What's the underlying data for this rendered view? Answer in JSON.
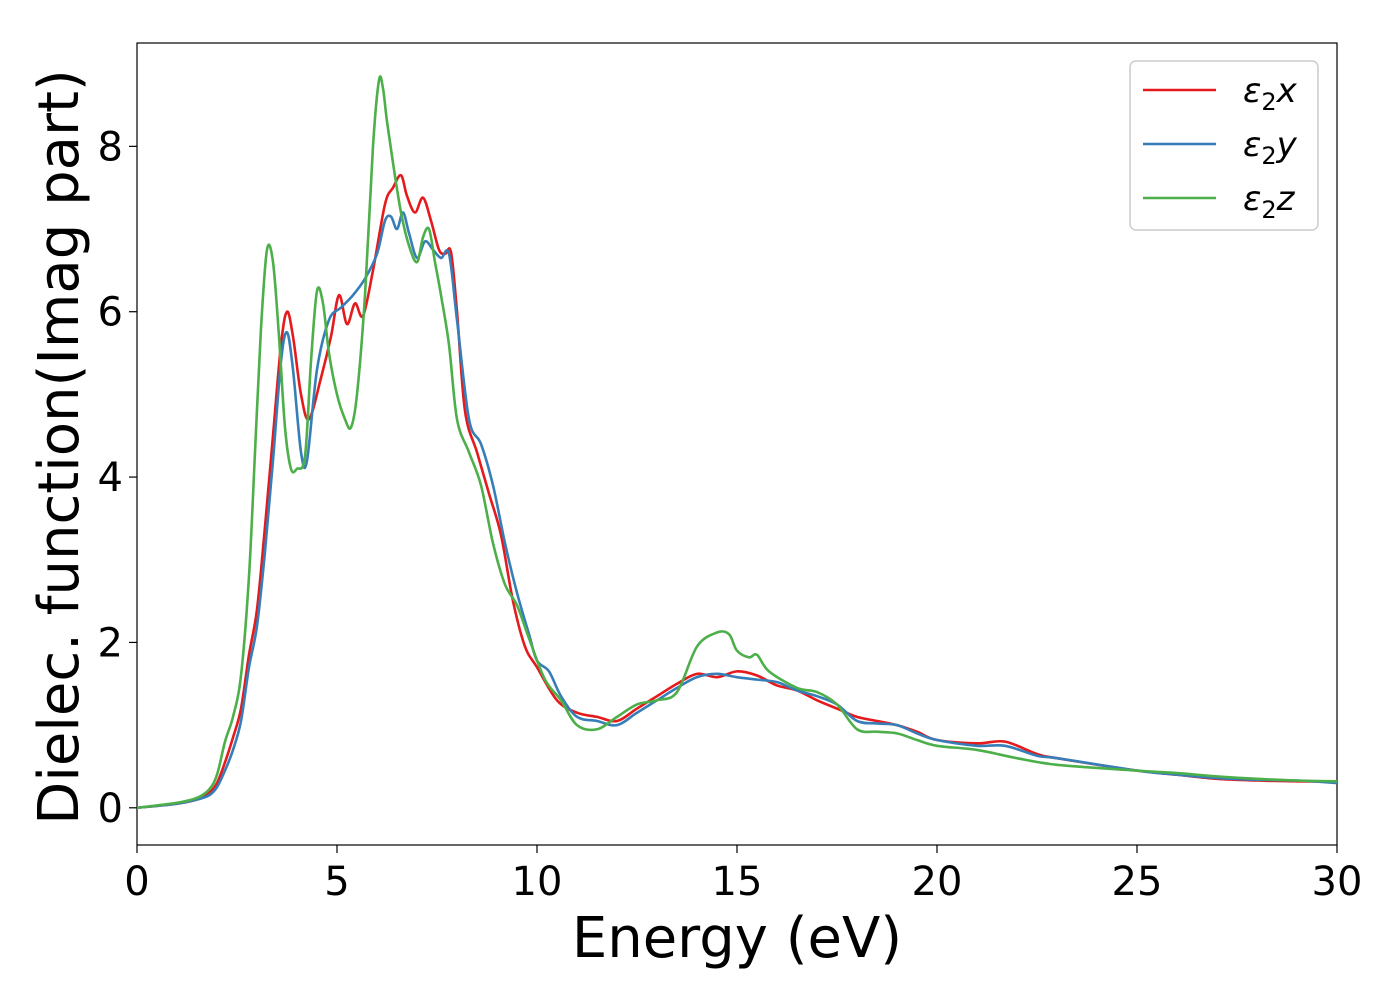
{
  "chart_data": {
    "type": "line",
    "xlabel": "Energy (eV)",
    "ylabel": "Dielec. function(Imag part)",
    "xlim": [
      0,
      30
    ],
    "ylim": [
      -0.45,
      9.25
    ],
    "xticks": [
      0,
      5,
      10,
      15,
      20,
      25,
      30
    ],
    "yticks": [
      0,
      2,
      4,
      6,
      8
    ],
    "grid": false,
    "legend_position": "top-right",
    "series": [
      {
        "name": "ε₂x",
        "legend": {
          "symbol": "ε",
          "sub": "2",
          "suffix": "x"
        },
        "color": "#e41a1c",
        "x": [
          0,
          1,
          1.5,
          1.8,
          2.0,
          2.2,
          2.4,
          2.6,
          2.8,
          3.0,
          3.2,
          3.4,
          3.6,
          3.75,
          3.9,
          4.1,
          4.3,
          4.6,
          4.85,
          5.05,
          5.25,
          5.45,
          5.65,
          5.9,
          6.2,
          6.4,
          6.6,
          6.75,
          6.95,
          7.15,
          7.35,
          7.55,
          7.7,
          7.85,
          8.0,
          8.2,
          8.5,
          8.8,
          9.1,
          9.4,
          9.7,
          10.0,
          10.5,
          11.0,
          11.5,
          12.0,
          12.5,
          13.0,
          13.5,
          14.0,
          14.5,
          15.0,
          15.5,
          16.0,
          16.5,
          17.0,
          17.5,
          18.0,
          18.5,
          19.0,
          19.5,
          20,
          21,
          21.7,
          22.5,
          23,
          25,
          26,
          27,
          28,
          29,
          30
        ],
        "values": [
          0,
          0.05,
          0.1,
          0.18,
          0.3,
          0.55,
          0.85,
          1.2,
          1.85,
          2.4,
          3.4,
          4.5,
          5.6,
          6.0,
          5.7,
          5.0,
          4.7,
          5.2,
          5.7,
          6.2,
          5.85,
          6.1,
          5.95,
          6.5,
          7.3,
          7.5,
          7.65,
          7.4,
          7.2,
          7.38,
          7.1,
          6.75,
          6.7,
          6.72,
          6.0,
          4.8,
          4.3,
          3.8,
          3.3,
          2.5,
          1.95,
          1.7,
          1.3,
          1.15,
          1.1,
          1.05,
          1.2,
          1.35,
          1.5,
          1.62,
          1.58,
          1.65,
          1.6,
          1.48,
          1.42,
          1.3,
          1.2,
          1.1,
          1.05,
          1.0,
          0.92,
          0.82,
          0.78,
          0.8,
          0.65,
          0.6,
          0.45,
          0.4,
          0.35,
          0.33,
          0.32,
          0.32
        ]
      },
      {
        "name": "ε₂y",
        "legend": {
          "symbol": "ε",
          "sub": "2",
          "suffix": "y"
        },
        "color": "#377eb8",
        "x": [
          0,
          1,
          1.5,
          1.8,
          2.0,
          2.2,
          2.4,
          2.6,
          2.8,
          3.0,
          3.2,
          3.4,
          3.6,
          3.75,
          3.9,
          4.1,
          4.25,
          4.5,
          4.8,
          5.1,
          5.4,
          5.7,
          6.0,
          6.2,
          6.35,
          6.5,
          6.65,
          6.8,
          7.0,
          7.2,
          7.4,
          7.6,
          7.8,
          8.0,
          8.3,
          8.6,
          8.9,
          9.2,
          9.5,
          9.8,
          10.0,
          10.3,
          10.6,
          11.0,
          11.5,
          12.0,
          12.5,
          13.0,
          13.5,
          14.0,
          14.5,
          15.0,
          15.5,
          16.0,
          16.5,
          17.0,
          17.5,
          18.0,
          18.5,
          19.0,
          19.5,
          20,
          21,
          21.7,
          22.5,
          23,
          25,
          26,
          27,
          28,
          29,
          30
        ],
        "values": [
          0,
          0.05,
          0.1,
          0.15,
          0.25,
          0.45,
          0.7,
          1.05,
          1.7,
          2.2,
          3.1,
          4.2,
          5.4,
          5.75,
          5.3,
          4.3,
          4.2,
          5.3,
          5.9,
          6.05,
          6.2,
          6.4,
          6.7,
          7.1,
          7.15,
          7.0,
          7.2,
          6.95,
          6.65,
          6.85,
          6.75,
          6.65,
          6.7,
          5.9,
          4.7,
          4.4,
          3.9,
          3.2,
          2.6,
          2.1,
          1.78,
          1.65,
          1.35,
          1.1,
          1.05,
          1.0,
          1.15,
          1.3,
          1.45,
          1.58,
          1.62,
          1.58,
          1.55,
          1.52,
          1.42,
          1.35,
          1.25,
          1.05,
          1.02,
          1.0,
          0.9,
          0.82,
          0.75,
          0.75,
          0.63,
          0.6,
          0.45,
          0.4,
          0.36,
          0.34,
          0.33,
          0.3
        ]
      },
      {
        "name": "ε₂z",
        "legend": {
          "symbol": "ε",
          "sub": "2",
          "suffix": "z"
        },
        "color": "#4daf4a",
        "x": [
          0,
          1,
          1.5,
          1.8,
          2.0,
          2.2,
          2.4,
          2.6,
          2.8,
          2.95,
          3.1,
          3.25,
          3.4,
          3.55,
          3.7,
          3.85,
          4.0,
          4.2,
          4.35,
          4.5,
          4.65,
          4.8,
          5.0,
          5.2,
          5.35,
          5.5,
          5.7,
          5.9,
          6.05,
          6.15,
          6.25,
          6.4,
          6.6,
          6.8,
          7.0,
          7.15,
          7.3,
          7.45,
          7.6,
          7.8,
          8.0,
          8.3,
          8.6,
          8.9,
          9.2,
          9.5,
          9.8,
          10.2,
          10.6,
          11.0,
          11.5,
          12.0,
          12.5,
          13.0,
          13.5,
          14.0,
          14.5,
          14.8,
          15.0,
          15.3,
          15.5,
          15.8,
          16.5,
          17.0,
          17.5,
          18.0,
          18.5,
          19.0,
          19.5,
          20,
          21,
          22,
          23,
          25,
          26,
          27,
          28,
          29,
          30
        ],
        "values": [
          0,
          0.06,
          0.12,
          0.22,
          0.4,
          0.8,
          1.1,
          1.6,
          2.8,
          4.3,
          5.8,
          6.75,
          6.6,
          5.7,
          4.6,
          4.1,
          4.1,
          4.25,
          5.4,
          6.25,
          6.1,
          5.5,
          5.0,
          4.7,
          4.6,
          5.0,
          6.2,
          8.0,
          8.8,
          8.7,
          8.3,
          7.8,
          7.2,
          6.8,
          6.6,
          6.9,
          7.0,
          6.6,
          6.2,
          5.6,
          4.7,
          4.3,
          3.9,
          3.2,
          2.7,
          2.45,
          2.05,
          1.55,
          1.3,
          1.0,
          0.95,
          1.1,
          1.25,
          1.3,
          1.4,
          1.95,
          2.12,
          2.1,
          1.9,
          1.82,
          1.85,
          1.65,
          1.45,
          1.4,
          1.25,
          0.95,
          0.92,
          0.9,
          0.82,
          0.75,
          0.7,
          0.6,
          0.52,
          0.45,
          0.42,
          0.38,
          0.35,
          0.33,
          0.32
        ]
      }
    ]
  }
}
